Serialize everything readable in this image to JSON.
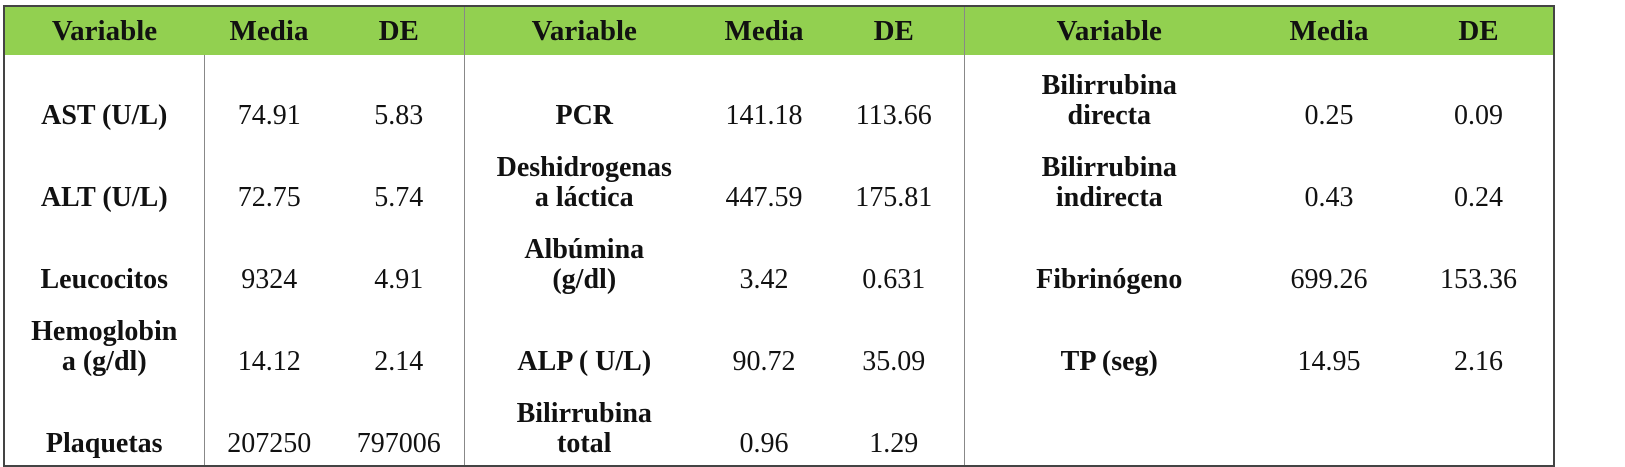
{
  "table": {
    "header": [
      "Variable",
      "Media",
      "DE",
      "Variable",
      "Media",
      "DE",
      "Variable",
      "Media",
      "DE"
    ],
    "rows": [
      [
        "AST (U/L)",
        "74.91",
        "5.83",
        "PCR",
        "141.18",
        "113.66",
        "Bilirrubina\ndirecta",
        "0.25",
        "0.09"
      ],
      [
        "ALT (U/L)",
        "72.75",
        "5.74",
        "Deshidrogenas\na láctica",
        "447.59",
        "175.81",
        "Bilirrubina\nindirecta",
        "0.43",
        "0.24"
      ],
      [
        "Leucocitos",
        "9324",
        "4.91",
        "Albúmina\n(g/dl)",
        "3.42",
        "0.631",
        "Fibrinógeno",
        "699.26",
        "153.36"
      ],
      [
        "Hemoglobin\na (g/dl)",
        "14.12",
        "2.14",
        "ALP ( U/L)",
        "90.72",
        "35.09",
        "TP (seg)",
        "14.95",
        "2.16"
      ],
      [
        "Plaquetas",
        "207250",
        "797006",
        "Bilirrubina\ntotal",
        "0.96",
        "1.29"
      ]
    ]
  }
}
